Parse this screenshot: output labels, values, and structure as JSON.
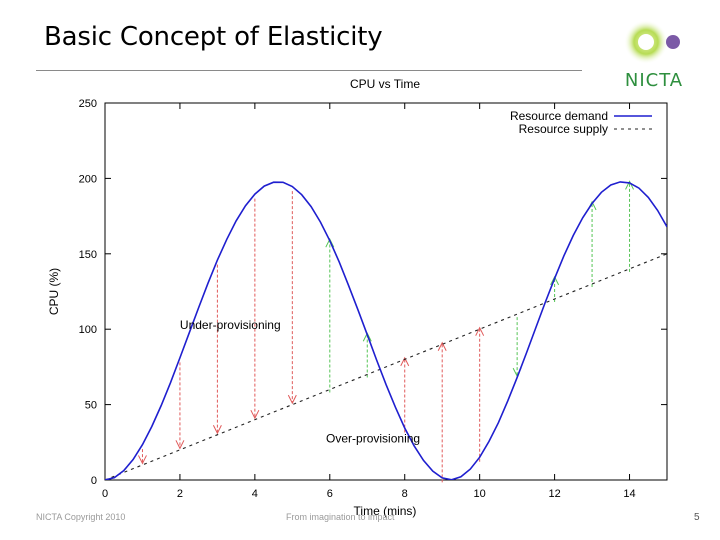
{
  "slide": {
    "title": "Basic Concept of Elasticity",
    "logo_text": "NICTA",
    "footer_left": "NICTA Copyright 2010",
    "footer_mid": "From imagination to impact",
    "page_number": "5"
  },
  "colors": {
    "demand": "#1f1fcf",
    "supply": "#222222",
    "under_arrow": "#e05a5a",
    "over_arrow": "#55c455",
    "logo_green": "#2e8f3e",
    "logo_purple": "#7b5aa6"
  },
  "chart_data": {
    "type": "line",
    "title": "CPU vs Time",
    "xlabel": "Time (mins)",
    "ylabel": "CPU (%)",
    "xlim": [
      0,
      15
    ],
    "ylim": [
      0,
      250
    ],
    "xticks": [
      0,
      2,
      4,
      6,
      8,
      10,
      12,
      14
    ],
    "yticks": [
      0,
      50,
      100,
      150,
      200,
      250
    ],
    "legend_position": "top-right",
    "series": [
      {
        "name": "Resource demand",
        "style": "solid",
        "x": [
          0,
          0.25,
          0.5,
          0.75,
          1,
          1.25,
          1.5,
          1.75,
          2,
          2.25,
          2.5,
          2.75,
          3,
          3.25,
          3.5,
          3.75,
          4,
          4.25,
          4.5,
          4.75,
          5,
          5.25,
          5.5,
          5.75,
          6,
          6.25,
          6.5,
          6.75,
          7,
          7.25,
          7.5,
          7.75,
          8,
          8.25,
          8.5,
          8.75,
          9,
          9.25,
          9.5,
          9.75,
          10,
          10.25,
          10.5,
          10.75,
          11,
          11.25,
          11.5,
          11.75,
          12,
          12.25,
          12.5,
          12.75,
          13,
          13.25,
          13.5,
          13.75,
          14,
          14.25,
          14.5,
          14.75,
          15
        ],
        "y": [
          0,
          1.6,
          6.2,
          13.6,
          23.5,
          35.5,
          49.4,
          64.7,
          81.0,
          97.7,
          114.4,
          130.5,
          145.8,
          159.6,
          171.8,
          181.9,
          189.6,
          194.9,
          197.5,
          197.4,
          194.6,
          189.2,
          181.3,
          171.1,
          158.7,
          144.6,
          129.1,
          112.9,
          96.3,
          79.6,
          63.4,
          48.3,
          34.5,
          22.7,
          13.0,
          5.9,
          1.4,
          0.1,
          2.1,
          7.2,
          15.1,
          25.6,
          38.0,
          52.5,
          67.9,
          84.3,
          101.1,
          117.7,
          133.7,
          148.8,
          162.2,
          173.9,
          183.4,
          190.8,
          195.6,
          197.7,
          197.0,
          193.6,
          187.4,
          178.8,
          167.9
        ]
      },
      {
        "name": "Resource supply",
        "style": "dashed",
        "x": [
          0,
          15
        ],
        "y": [
          0,
          150
        ]
      }
    ],
    "arrows": {
      "under_provisioning_x": [
        1,
        2,
        3,
        4,
        5,
        8,
        9,
        10
      ],
      "over_provisioning_x": [
        6,
        7,
        11,
        12,
        13,
        14
      ]
    },
    "annotations": [
      {
        "text": "Under-provisioning",
        "x": 2,
        "y": 100
      },
      {
        "text": "Over-provisioning",
        "x": 5.9,
        "y": 25
      }
    ]
  }
}
